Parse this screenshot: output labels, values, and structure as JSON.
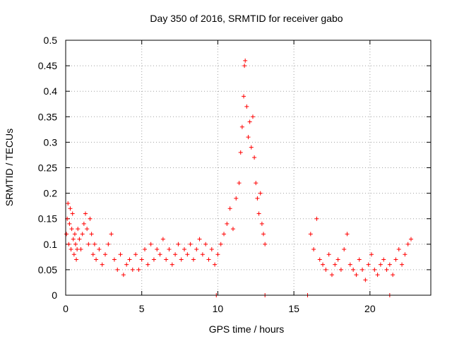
{
  "chart_data": {
    "type": "scatter",
    "title": "Day 350 of 2016, SRMTID for receiver gabo",
    "xlabel": "GPS time / hours",
    "ylabel": "SRMTID / TECUs",
    "xlim": [
      0,
      24
    ],
    "ylim": [
      0,
      0.5
    ],
    "xticks": [
      0,
      5,
      10,
      15,
      20
    ],
    "xtick_labels": [
      "0",
      "5",
      "10",
      "15",
      "20"
    ],
    "yticks": [
      0,
      0.05,
      0.1,
      0.15,
      0.2,
      0.25,
      0.3,
      0.35,
      0.4,
      0.45,
      0.5
    ],
    "ytick_labels": [
      "0",
      "0.05",
      "0.1",
      "0.15",
      "0.2",
      "0.25",
      "0.3",
      "0.35",
      "0.4",
      "0.45",
      "0.5"
    ],
    "grid": true,
    "marker": "+",
    "color": "#ff0000",
    "series": [
      {
        "name": "SRMTID",
        "points": [
          [
            0.05,
            0.12
          ],
          [
            0.1,
            0.15
          ],
          [
            0.15,
            0.18
          ],
          [
            0.2,
            0.1
          ],
          [
            0.25,
            0.14
          ],
          [
            0.3,
            0.17
          ],
          [
            0.35,
            0.09
          ],
          [
            0.4,
            0.13
          ],
          [
            0.45,
            0.16
          ],
          [
            0.5,
            0.11
          ],
          [
            0.55,
            0.08
          ],
          [
            0.6,
            0.12
          ],
          [
            0.65,
            0.1
          ],
          [
            0.7,
            0.07
          ],
          [
            0.75,
            0.09
          ],
          [
            0.8,
            0.13
          ],
          [
            0.9,
            0.11
          ],
          [
            1.0,
            0.09
          ],
          [
            1.1,
            0.12
          ],
          [
            1.2,
            0.14
          ],
          [
            1.3,
            0.16
          ],
          [
            1.4,
            0.13
          ],
          [
            1.5,
            0.1
          ],
          [
            1.6,
            0.15
          ],
          [
            1.7,
            0.12
          ],
          [
            1.8,
            0.08
          ],
          [
            1.9,
            0.1
          ],
          [
            2.0,
            0.07
          ],
          [
            2.2,
            0.09
          ],
          [
            2.4,
            0.06
          ],
          [
            2.6,
            0.08
          ],
          [
            2.8,
            0.1
          ],
          [
            3.0,
            0.12
          ],
          [
            3.2,
            0.07
          ],
          [
            3.4,
            0.05
          ],
          [
            3.6,
            0.08
          ],
          [
            3.8,
            0.04
          ],
          [
            4.0,
            0.06
          ],
          [
            4.2,
            0.07
          ],
          [
            4.4,
            0.05
          ],
          [
            4.6,
            0.08
          ],
          [
            4.8,
            0.05
          ],
          [
            5.0,
            0.07
          ],
          [
            5.2,
            0.09
          ],
          [
            5.4,
            0.06
          ],
          [
            5.6,
            0.1
          ],
          [
            5.8,
            0.07
          ],
          [
            6.0,
            0.09
          ],
          [
            6.2,
            0.08
          ],
          [
            6.4,
            0.11
          ],
          [
            6.6,
            0.07
          ],
          [
            6.8,
            0.09
          ],
          [
            7.0,
            0.06
          ],
          [
            7.2,
            0.08
          ],
          [
            7.4,
            0.1
          ],
          [
            7.6,
            0.07
          ],
          [
            7.8,
            0.09
          ],
          [
            8.0,
            0.08
          ],
          [
            8.2,
            0.1
          ],
          [
            8.4,
            0.07
          ],
          [
            8.6,
            0.09
          ],
          [
            8.8,
            0.11
          ],
          [
            9.0,
            0.08
          ],
          [
            9.2,
            0.1
          ],
          [
            9.4,
            0.07
          ],
          [
            9.6,
            0.09
          ],
          [
            9.8,
            0.06
          ],
          [
            10.0,
            0.08
          ],
          [
            10.2,
            0.1
          ],
          [
            10.4,
            0.12
          ],
          [
            10.6,
            0.14
          ],
          [
            10.8,
            0.17
          ],
          [
            11.0,
            0.13
          ],
          [
            11.2,
            0.19
          ],
          [
            11.4,
            0.22
          ],
          [
            11.5,
            0.28
          ],
          [
            11.6,
            0.33
          ],
          [
            11.7,
            0.39
          ],
          [
            11.75,
            0.45
          ],
          [
            11.8,
            0.46
          ],
          [
            11.9,
            0.37
          ],
          [
            12.0,
            0.31
          ],
          [
            12.1,
            0.34
          ],
          [
            12.2,
            0.29
          ],
          [
            12.3,
            0.35
          ],
          [
            12.4,
            0.27
          ],
          [
            12.5,
            0.22
          ],
          [
            12.6,
            0.19
          ],
          [
            12.7,
            0.16
          ],
          [
            12.8,
            0.2
          ],
          [
            12.9,
            0.14
          ],
          [
            13.0,
            0.12
          ],
          [
            13.1,
            0.1
          ],
          [
            16.1,
            0.12
          ],
          [
            16.3,
            0.09
          ],
          [
            16.5,
            0.15
          ],
          [
            16.7,
            0.07
          ],
          [
            16.9,
            0.06
          ],
          [
            17.1,
            0.05
          ],
          [
            17.3,
            0.08
          ],
          [
            17.5,
            0.04
          ],
          [
            17.7,
            0.06
          ],
          [
            17.9,
            0.07
          ],
          [
            18.1,
            0.05
          ],
          [
            18.3,
            0.09
          ],
          [
            18.5,
            0.12
          ],
          [
            18.7,
            0.06
          ],
          [
            18.9,
            0.05
          ],
          [
            19.1,
            0.04
          ],
          [
            19.3,
            0.07
          ],
          [
            19.5,
            0.05
          ],
          [
            19.7,
            0.03
          ],
          [
            19.9,
            0.06
          ],
          [
            20.1,
            0.08
          ],
          [
            20.3,
            0.05
          ],
          [
            20.5,
            0.04
          ],
          [
            20.7,
            0.06
          ],
          [
            20.9,
            0.07
          ],
          [
            21.1,
            0.05
          ],
          [
            21.3,
            0.06
          ],
          [
            21.5,
            0.04
          ],
          [
            21.7,
            0.07
          ],
          [
            21.9,
            0.09
          ],
          [
            22.1,
            0.06
          ],
          [
            22.3,
            0.08
          ],
          [
            22.5,
            0.1
          ],
          [
            22.7,
            0.11
          ],
          [
            9.9,
            0.0
          ],
          [
            13.1,
            0.0
          ],
          [
            15.9,
            0.0
          ],
          [
            21.3,
            0.0
          ]
        ]
      }
    ]
  }
}
